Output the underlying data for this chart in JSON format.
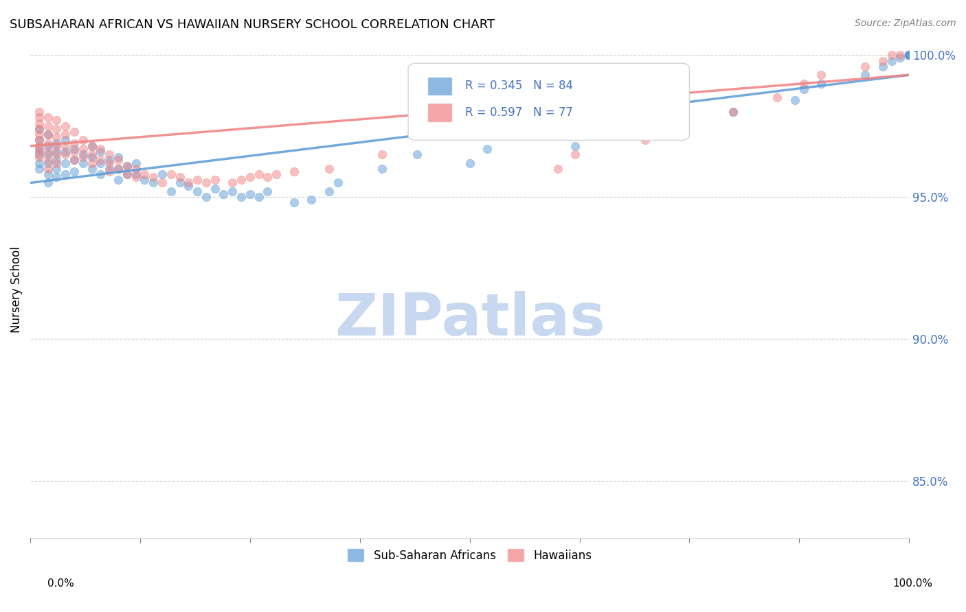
{
  "title": "SUBSAHARAN AFRICAN VS HAWAIIAN NURSERY SCHOOL CORRELATION CHART",
  "source": "Source: ZipAtlas.com",
  "ylabel": "Nursery School",
  "legend_labels": [
    "Sub-Saharan Africans",
    "Hawaiians"
  ],
  "ytick_labels": [
    "85.0%",
    "90.0%",
    "95.0%",
    "100.0%"
  ],
  "ytick_positions": [
    0.85,
    0.9,
    0.95,
    1.0
  ],
  "blue_color": "#5b9bd5",
  "pink_color": "#f08080",
  "r_blue": "R = 0.345",
  "n_blue": "N = 84",
  "r_pink": "R = 0.597",
  "n_pink": "N = 77",
  "blue_scatter_x": [
    0.01,
    0.01,
    0.01,
    0.01,
    0.01,
    0.01,
    0.02,
    0.02,
    0.02,
    0.02,
    0.02,
    0.02,
    0.03,
    0.03,
    0.03,
    0.03,
    0.03,
    0.04,
    0.04,
    0.04,
    0.04,
    0.05,
    0.05,
    0.05,
    0.06,
    0.06,
    0.07,
    0.07,
    0.07,
    0.08,
    0.08,
    0.08,
    0.09,
    0.09,
    0.1,
    0.1,
    0.1,
    0.11,
    0.11,
    0.12,
    0.12,
    0.13,
    0.14,
    0.15,
    0.16,
    0.17,
    0.18,
    0.19,
    0.2,
    0.21,
    0.22,
    0.23,
    0.24,
    0.25,
    0.26,
    0.27,
    0.3,
    0.32,
    0.34,
    0.35,
    0.4,
    0.44,
    0.5,
    0.52,
    0.62,
    0.7,
    0.72,
    0.8,
    0.87,
    0.88,
    0.9,
    0.95,
    0.97,
    0.98,
    0.99,
    1.0,
    1.0,
    1.0,
    1.0,
    1.0,
    1.0,
    1.0,
    1.0,
    1.0
  ],
  "blue_scatter_y": [
    0.974,
    0.97,
    0.967,
    0.965,
    0.962,
    0.96,
    0.972,
    0.968,
    0.965,
    0.962,
    0.958,
    0.955,
    0.969,
    0.966,
    0.963,
    0.96,
    0.957,
    0.97,
    0.966,
    0.962,
    0.958,
    0.967,
    0.963,
    0.959,
    0.965,
    0.962,
    0.968,
    0.964,
    0.96,
    0.966,
    0.962,
    0.958,
    0.963,
    0.96,
    0.964,
    0.96,
    0.956,
    0.961,
    0.958,
    0.962,
    0.958,
    0.956,
    0.955,
    0.958,
    0.952,
    0.955,
    0.954,
    0.952,
    0.95,
    0.953,
    0.951,
    0.952,
    0.95,
    0.951,
    0.95,
    0.952,
    0.948,
    0.949,
    0.952,
    0.955,
    0.96,
    0.965,
    0.962,
    0.967,
    0.968,
    0.975,
    0.978,
    0.98,
    0.984,
    0.988,
    0.99,
    0.993,
    0.996,
    0.998,
    0.999,
    1.0,
    1.0,
    1.0,
    1.0,
    1.0,
    1.0,
    1.0,
    1.0,
    1.0
  ],
  "pink_scatter_x": [
    0.01,
    0.01,
    0.01,
    0.01,
    0.01,
    0.01,
    0.01,
    0.01,
    0.01,
    0.02,
    0.02,
    0.02,
    0.02,
    0.02,
    0.02,
    0.02,
    0.03,
    0.03,
    0.03,
    0.03,
    0.03,
    0.03,
    0.04,
    0.04,
    0.04,
    0.04,
    0.05,
    0.05,
    0.05,
    0.05,
    0.06,
    0.06,
    0.06,
    0.07,
    0.07,
    0.07,
    0.08,
    0.08,
    0.09,
    0.09,
    0.09,
    0.1,
    0.1,
    0.11,
    0.11,
    0.12,
    0.12,
    0.13,
    0.14,
    0.15,
    0.16,
    0.17,
    0.18,
    0.19,
    0.2,
    0.21,
    0.23,
    0.24,
    0.25,
    0.26,
    0.27,
    0.28,
    0.3,
    0.34,
    0.4,
    0.6,
    0.62,
    0.7,
    0.72,
    0.8,
    0.85,
    0.88,
    0.9,
    0.95,
    0.97,
    0.98,
    0.99
  ],
  "pink_scatter_y": [
    0.98,
    0.978,
    0.976,
    0.974,
    0.972,
    0.97,
    0.968,
    0.966,
    0.964,
    0.978,
    0.975,
    0.972,
    0.969,
    0.966,
    0.963,
    0.96,
    0.977,
    0.974,
    0.971,
    0.968,
    0.965,
    0.962,
    0.975,
    0.972,
    0.968,
    0.965,
    0.973,
    0.969,
    0.966,
    0.963,
    0.97,
    0.967,
    0.964,
    0.968,
    0.965,
    0.962,
    0.967,
    0.963,
    0.965,
    0.962,
    0.959,
    0.963,
    0.96,
    0.961,
    0.958,
    0.96,
    0.957,
    0.958,
    0.957,
    0.955,
    0.958,
    0.957,
    0.955,
    0.956,
    0.955,
    0.956,
    0.955,
    0.956,
    0.957,
    0.958,
    0.957,
    0.958,
    0.959,
    0.96,
    0.965,
    0.96,
    0.965,
    0.97,
    0.975,
    0.98,
    0.985,
    0.99,
    0.993,
    0.996,
    0.998,
    1.0,
    1.0
  ],
  "blue_line_x": [
    0.0,
    1.0
  ],
  "blue_line_y": [
    0.955,
    0.993
  ],
  "pink_line_x": [
    0.0,
    1.0
  ],
  "pink_line_y": [
    0.968,
    0.993
  ],
  "xlim": [
    0.0,
    1.0
  ],
  "ylim": [
    0.83,
    1.005
  ],
  "marker_size": 80,
  "marker_alpha": 0.5,
  "line_alpha": 0.85,
  "watermark_text": "ZIPatlas",
  "watermark_color": "#c8d8f0",
  "watermark_fontsize": 62
}
